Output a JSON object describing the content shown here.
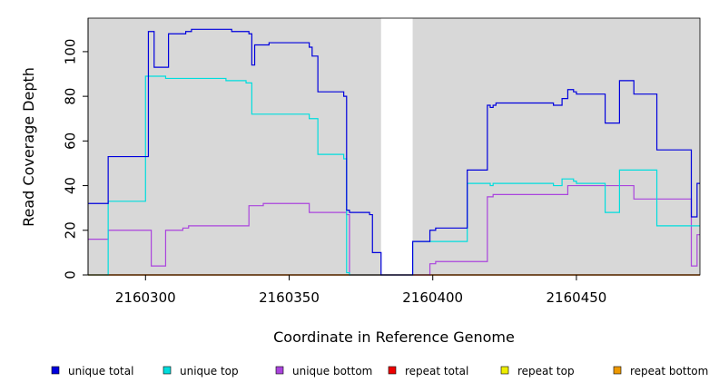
{
  "chart_data": {
    "type": "line",
    "title": "",
    "xlabel": "Coordinate in Reference Genome",
    "ylabel": "Read Coverage Depth",
    "xlim": [
      2160280,
      2160493
    ],
    "ylim": [
      0,
      115
    ],
    "x_ticks": [
      2160300,
      2160350,
      2160400,
      2160450
    ],
    "y_ticks": [
      0,
      20,
      40,
      60,
      80,
      100
    ],
    "grid": false,
    "background_color": "#d8d8d8",
    "gap_region": [
      2160382,
      2160393
    ],
    "legend_position": "bottom",
    "series": [
      {
        "name": "unique total",
        "color": "#0000dd",
        "points": [
          [
            2160280,
            32
          ],
          [
            2160287,
            32
          ],
          [
            2160287,
            53
          ],
          [
            2160301,
            53
          ],
          [
            2160301,
            109
          ],
          [
            2160303,
            109
          ],
          [
            2160303,
            93
          ],
          [
            2160308,
            93
          ],
          [
            2160308,
            108
          ],
          [
            2160314,
            108
          ],
          [
            2160314,
            109
          ],
          [
            2160316,
            109
          ],
          [
            2160316,
            110
          ],
          [
            2160330,
            110
          ],
          [
            2160330,
            109
          ],
          [
            2160336,
            109
          ],
          [
            2160336,
            108
          ],
          [
            2160337,
            108
          ],
          [
            2160337,
            94
          ],
          [
            2160338,
            94
          ],
          [
            2160338,
            103
          ],
          [
            2160343,
            103
          ],
          [
            2160343,
            104
          ],
          [
            2160357,
            104
          ],
          [
            2160357,
            102
          ],
          [
            2160358,
            102
          ],
          [
            2160358,
            98
          ],
          [
            2160360,
            98
          ],
          [
            2160360,
            82
          ],
          [
            2160369,
            82
          ],
          [
            2160369,
            80
          ],
          [
            2160370,
            80
          ],
          [
            2160370,
            29
          ],
          [
            2160371,
            29
          ],
          [
            2160371,
            28
          ],
          [
            2160378,
            28
          ],
          [
            2160378,
            27
          ],
          [
            2160379,
            27
          ],
          [
            2160379,
            10
          ],
          [
            2160382,
            10
          ],
          [
            2160382,
            0
          ],
          [
            2160393,
            0
          ],
          [
            2160393,
            15
          ],
          [
            2160399,
            15
          ],
          [
            2160399,
            20
          ],
          [
            2160401,
            20
          ],
          [
            2160401,
            21
          ],
          [
            2160412,
            21
          ],
          [
            2160412,
            47
          ],
          [
            2160419,
            47
          ],
          [
            2160419,
            76
          ],
          [
            2160420,
            76
          ],
          [
            2160420,
            75
          ],
          [
            2160421,
            75
          ],
          [
            2160421,
            76
          ],
          [
            2160422,
            76
          ],
          [
            2160422,
            77
          ],
          [
            2160442,
            77
          ],
          [
            2160442,
            76
          ],
          [
            2160445,
            76
          ],
          [
            2160445,
            79
          ],
          [
            2160447,
            79
          ],
          [
            2160447,
            83
          ],
          [
            2160449,
            83
          ],
          [
            2160449,
            82
          ],
          [
            2160450,
            82
          ],
          [
            2160450,
            81
          ],
          [
            2160460,
            81
          ],
          [
            2160460,
            68
          ],
          [
            2160465,
            68
          ],
          [
            2160465,
            87
          ],
          [
            2160470,
            87
          ],
          [
            2160470,
            81
          ],
          [
            2160478,
            81
          ],
          [
            2160478,
            56
          ],
          [
            2160490,
            56
          ],
          [
            2160490,
            26
          ],
          [
            2160492,
            26
          ],
          [
            2160492,
            41
          ],
          [
            2160493,
            41
          ]
        ]
      },
      {
        "name": "unique top",
        "color": "#00dddd",
        "points": [
          [
            2160280,
            0
          ],
          [
            2160287,
            0
          ],
          [
            2160287,
            33
          ],
          [
            2160300,
            33
          ],
          [
            2160300,
            89
          ],
          [
            2160307,
            89
          ],
          [
            2160307,
            88
          ],
          [
            2160328,
            88
          ],
          [
            2160328,
            87
          ],
          [
            2160335,
            87
          ],
          [
            2160335,
            86
          ],
          [
            2160337,
            86
          ],
          [
            2160337,
            72
          ],
          [
            2160357,
            72
          ],
          [
            2160357,
            70
          ],
          [
            2160360,
            70
          ],
          [
            2160360,
            54
          ],
          [
            2160369,
            54
          ],
          [
            2160369,
            52
          ],
          [
            2160370,
            52
          ],
          [
            2160370,
            1
          ],
          [
            2160371,
            1
          ],
          [
            2160371,
            0
          ],
          [
            2160393,
            0
          ],
          [
            2160393,
            15
          ],
          [
            2160412,
            15
          ],
          [
            2160412,
            41
          ],
          [
            2160420,
            41
          ],
          [
            2160420,
            40
          ],
          [
            2160421,
            40
          ],
          [
            2160421,
            41
          ],
          [
            2160442,
            41
          ],
          [
            2160442,
            40
          ],
          [
            2160445,
            40
          ],
          [
            2160445,
            43
          ],
          [
            2160449,
            43
          ],
          [
            2160449,
            42
          ],
          [
            2160450,
            42
          ],
          [
            2160450,
            41
          ],
          [
            2160460,
            41
          ],
          [
            2160460,
            28
          ],
          [
            2160465,
            28
          ],
          [
            2160465,
            47
          ],
          [
            2160478,
            47
          ],
          [
            2160478,
            22
          ],
          [
            2160493,
            22
          ]
        ]
      },
      {
        "name": "unique bottom",
        "color": "#aa44dd",
        "points": [
          [
            2160280,
            16
          ],
          [
            2160287,
            16
          ],
          [
            2160287,
            20
          ],
          [
            2160302,
            20
          ],
          [
            2160302,
            4
          ],
          [
            2160307,
            4
          ],
          [
            2160307,
            20
          ],
          [
            2160313,
            20
          ],
          [
            2160313,
            21
          ],
          [
            2160315,
            21
          ],
          [
            2160315,
            22
          ],
          [
            2160336,
            22
          ],
          [
            2160336,
            31
          ],
          [
            2160341,
            31
          ],
          [
            2160341,
            32
          ],
          [
            2160357,
            32
          ],
          [
            2160357,
            28
          ],
          [
            2160370,
            28
          ],
          [
            2160370,
            27
          ],
          [
            2160371,
            27
          ],
          [
            2160371,
            0
          ],
          [
            2160399,
            0
          ],
          [
            2160399,
            5
          ],
          [
            2160401,
            5
          ],
          [
            2160401,
            6
          ],
          [
            2160419,
            6
          ],
          [
            2160419,
            35
          ],
          [
            2160421,
            35
          ],
          [
            2160421,
            36
          ],
          [
            2160447,
            36
          ],
          [
            2160447,
            40
          ],
          [
            2160470,
            40
          ],
          [
            2160470,
            34
          ],
          [
            2160490,
            34
          ],
          [
            2160490,
            4
          ],
          [
            2160492,
            4
          ],
          [
            2160492,
            18
          ],
          [
            2160493,
            18
          ]
        ]
      },
      {
        "name": "repeat total",
        "color": "#ee0000",
        "points": [
          [
            2160280,
            0
          ],
          [
            2160382,
            0
          ],
          [
            2160382,
            0
          ],
          [
            2160393,
            0
          ],
          [
            2160393,
            0
          ],
          [
            2160493,
            0
          ]
        ]
      },
      {
        "name": "repeat top",
        "color": "#eeee00",
        "points": [
          [
            2160280,
            0
          ],
          [
            2160382,
            0
          ],
          [
            2160382,
            0
          ],
          [
            2160393,
            0
          ],
          [
            2160393,
            0
          ],
          [
            2160493,
            0
          ]
        ]
      },
      {
        "name": "repeat bottom",
        "color": "#ee9900",
        "points": [
          [
            2160280,
            0
          ],
          [
            2160382,
            0
          ],
          [
            2160382,
            0
          ],
          [
            2160393,
            0
          ],
          [
            2160393,
            0
          ],
          [
            2160493,
            0
          ]
        ]
      }
    ]
  }
}
